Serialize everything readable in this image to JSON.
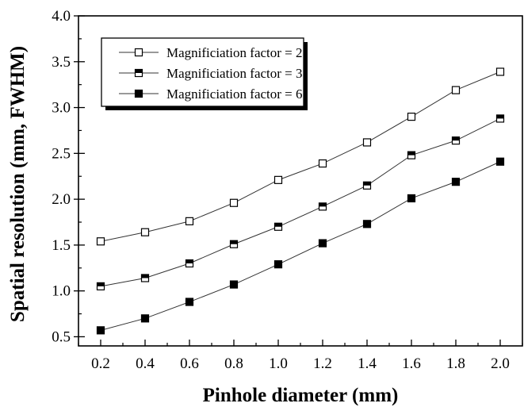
{
  "chart_data": {
    "type": "line",
    "xlabel": "Pinhole diameter (mm)",
    "ylabel": "Spatial resolution (mm, FWHM)",
    "xlim": [
      0.1,
      2.1
    ],
    "ylim": [
      0.4,
      4.0
    ],
    "x": [
      0.2,
      0.4,
      0.6,
      0.8,
      1.0,
      1.2,
      1.4,
      1.6,
      1.8,
      2.0
    ],
    "x_ticks": [
      "0.2",
      "0.4",
      "0.6",
      "0.8",
      "1.0",
      "1.2",
      "1.4",
      "1.6",
      "1.8",
      "2.0"
    ],
    "y_ticks": [
      "0.5",
      "1.0",
      "1.5",
      "2.0",
      "2.5",
      "3.0",
      "3.5",
      "4.0"
    ],
    "grid": false,
    "legend_position": "top-left",
    "series": [
      {
        "name": "Magnificiation factor = 2",
        "marker": "open-square",
        "values": [
          1.54,
          1.64,
          1.76,
          1.96,
          2.21,
          2.39,
          2.62,
          2.9,
          3.19,
          3.39
        ]
      },
      {
        "name": "Magnificiation factor = 3",
        "marker": "half-filled-square",
        "values": [
          1.05,
          1.14,
          1.3,
          1.51,
          1.7,
          1.92,
          2.15,
          2.48,
          2.64,
          2.88
        ]
      },
      {
        "name": "Magnificiation factor = 6",
        "marker": "filled-square",
        "values": [
          0.57,
          0.7,
          0.88,
          1.07,
          1.29,
          1.52,
          1.73,
          2.01,
          2.19,
          2.41
        ]
      }
    ]
  }
}
